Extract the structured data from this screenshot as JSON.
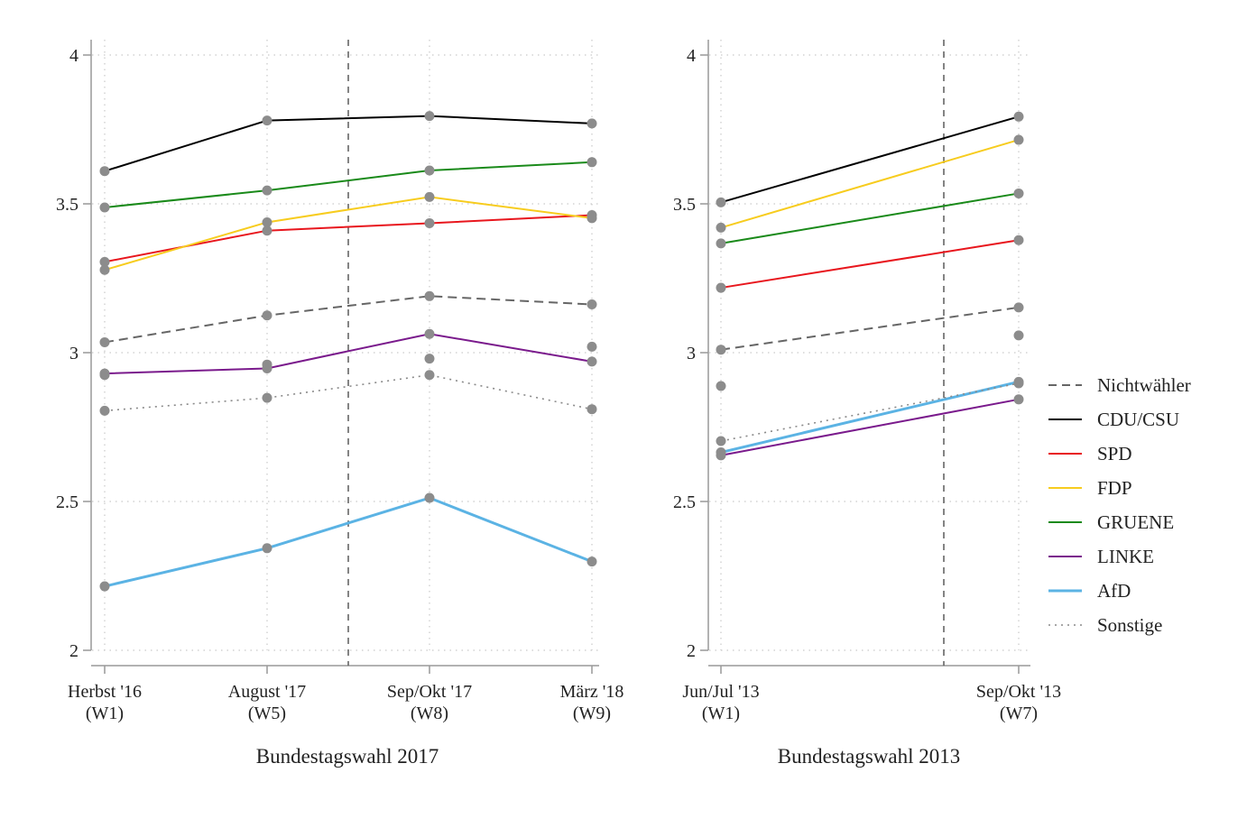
{
  "colors": {
    "Nichtwähler": "#666666",
    "CDU/CSU": "#000000",
    "SPD": "#e8161d",
    "FDP": "#f7cc1e",
    "GRUENE": "#1a8a1a",
    "LINKE": "#7a1a8c",
    "AfD": "#5bb3e4",
    "Sonstige": "#8a8a8a",
    "marker": "#8c8c8c"
  },
  "legend": [
    {
      "name": "Nichtwähler",
      "style": "dashed"
    },
    {
      "name": "CDU/CSU",
      "style": "solid"
    },
    {
      "name": "SPD",
      "style": "solid"
    },
    {
      "name": "FDP",
      "style": "solid"
    },
    {
      "name": "GRUENE",
      "style": "solid"
    },
    {
      "name": "LINKE",
      "style": "solid"
    },
    {
      "name": "AfD",
      "style": "solid"
    },
    {
      "name": "Sonstige",
      "style": "dotted"
    }
  ],
  "chart_data": [
    {
      "type": "line",
      "title": "Bundestagswahl 2017",
      "ylim": [
        2,
        4
      ],
      "yticks": [
        2,
        2.5,
        3,
        3.5,
        4
      ],
      "ytick_labels": [
        "2",
        "2.5",
        "3",
        "3.5",
        "4"
      ],
      "grid": true,
      "election_marker_between": [
        1,
        2
      ],
      "categories": [
        {
          "line1": "Herbst '16",
          "line2": "(W1)"
        },
        {
          "line1": "August '17",
          "line2": "(W5)"
        },
        {
          "line1": "Sep/Okt '17",
          "line2": "(W8)"
        },
        {
          "line1": "März '18",
          "line2": "(W9)"
        }
      ],
      "series": [
        {
          "name": "Nichtwähler",
          "values": [
            3.035,
            3.125,
            3.19,
            3.162
          ],
          "extra": [
            [
              3,
              3.02
            ]
          ]
        },
        {
          "name": "CDU/CSU",
          "values": [
            3.61,
            3.78,
            3.795,
            3.77
          ]
        },
        {
          "name": "SPD",
          "values": [
            3.305,
            3.41,
            3.435,
            3.462
          ]
        },
        {
          "name": "FDP",
          "values": [
            3.278,
            3.438,
            3.523,
            3.452
          ]
        },
        {
          "name": "GRUENE",
          "values": [
            3.488,
            3.545,
            3.612,
            3.64
          ]
        },
        {
          "name": "LINKE",
          "values": [
            2.93,
            2.947,
            3.063,
            2.97
          ],
          "extra": [
            [
              0,
              2.925
            ],
            [
              1,
              2.96
            ],
            [
              2,
              2.98
            ]
          ]
        },
        {
          "name": "AfD",
          "values": [
            2.215,
            2.343,
            2.512,
            2.298
          ]
        },
        {
          "name": "Sonstige",
          "values": [
            2.805,
            2.848,
            2.925,
            2.81
          ]
        }
      ]
    },
    {
      "type": "line",
      "title": "Bundestagswahl 2013",
      "ylim": [
        2,
        4
      ],
      "yticks": [
        2,
        2.5,
        3,
        3.5,
        4
      ],
      "ytick_labels": [
        "2",
        "2.5",
        "3",
        "3.5",
        "4"
      ],
      "grid": true,
      "election_marker_at_fraction": 0.75,
      "categories": [
        {
          "line1": "Jun/Jul '13",
          "line2": "(W1)"
        },
        {
          "line1": "Sep/Okt '13",
          "line2": "(W7)"
        }
      ],
      "series": [
        {
          "name": "Nichtwähler",
          "values": [
            3.01,
            3.152
          ],
          "extra": [
            [
              0,
              2.888
            ],
            [
              1,
              3.058
            ]
          ]
        },
        {
          "name": "CDU/CSU",
          "values": [
            3.505,
            3.793
          ]
        },
        {
          "name": "SPD",
          "values": [
            3.218,
            3.378
          ]
        },
        {
          "name": "FDP",
          "values": [
            3.42,
            3.715
          ]
        },
        {
          "name": "GRUENE",
          "values": [
            3.367,
            3.535
          ]
        },
        {
          "name": "LINKE",
          "values": [
            2.655,
            2.843
          ]
        },
        {
          "name": "AfD",
          "values": [
            2.665,
            2.902
          ]
        },
        {
          "name": "Sonstige",
          "values": [
            2.703,
            2.897
          ]
        }
      ]
    }
  ]
}
